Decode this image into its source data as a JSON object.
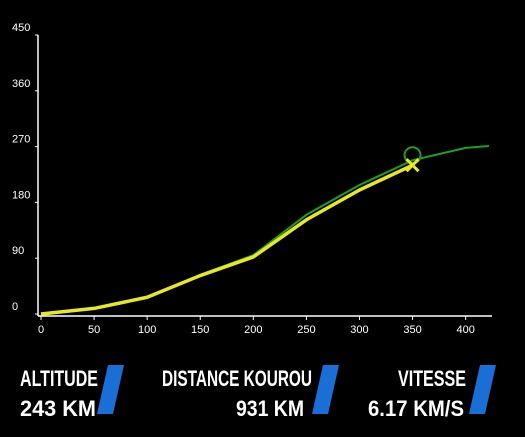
{
  "chart_data": {
    "type": "line",
    "x": [
      0,
      50,
      100,
      150,
      200,
      250,
      300,
      350,
      400,
      422
    ],
    "series": [
      {
        "color": "#1f9e1f",
        "values": [
          0,
          10,
          27,
          63,
          95,
          160,
          208,
          248,
          268,
          271
        ]
      },
      {
        "color": "#e8e820",
        "values": [
          0,
          9,
          27,
          62,
          92,
          152,
          200,
          240,
          null,
          null
        ]
      }
    ],
    "xlim": [
      0,
      422
    ],
    "ylim": [
      0,
      450
    ],
    "xticks": [
      0,
      50,
      100,
      150,
      200,
      250,
      300,
      350,
      400
    ],
    "yticks": [
      0,
      90,
      180,
      270,
      360,
      450
    ]
  },
  "telemetry": [
    {
      "label": "ALTITUDE",
      "value": "243 KM"
    },
    {
      "label": "DISTANCE KOUROU",
      "value": "931 KM"
    },
    {
      "label": "VITESSE",
      "value": "6.17 KM/S"
    }
  ]
}
